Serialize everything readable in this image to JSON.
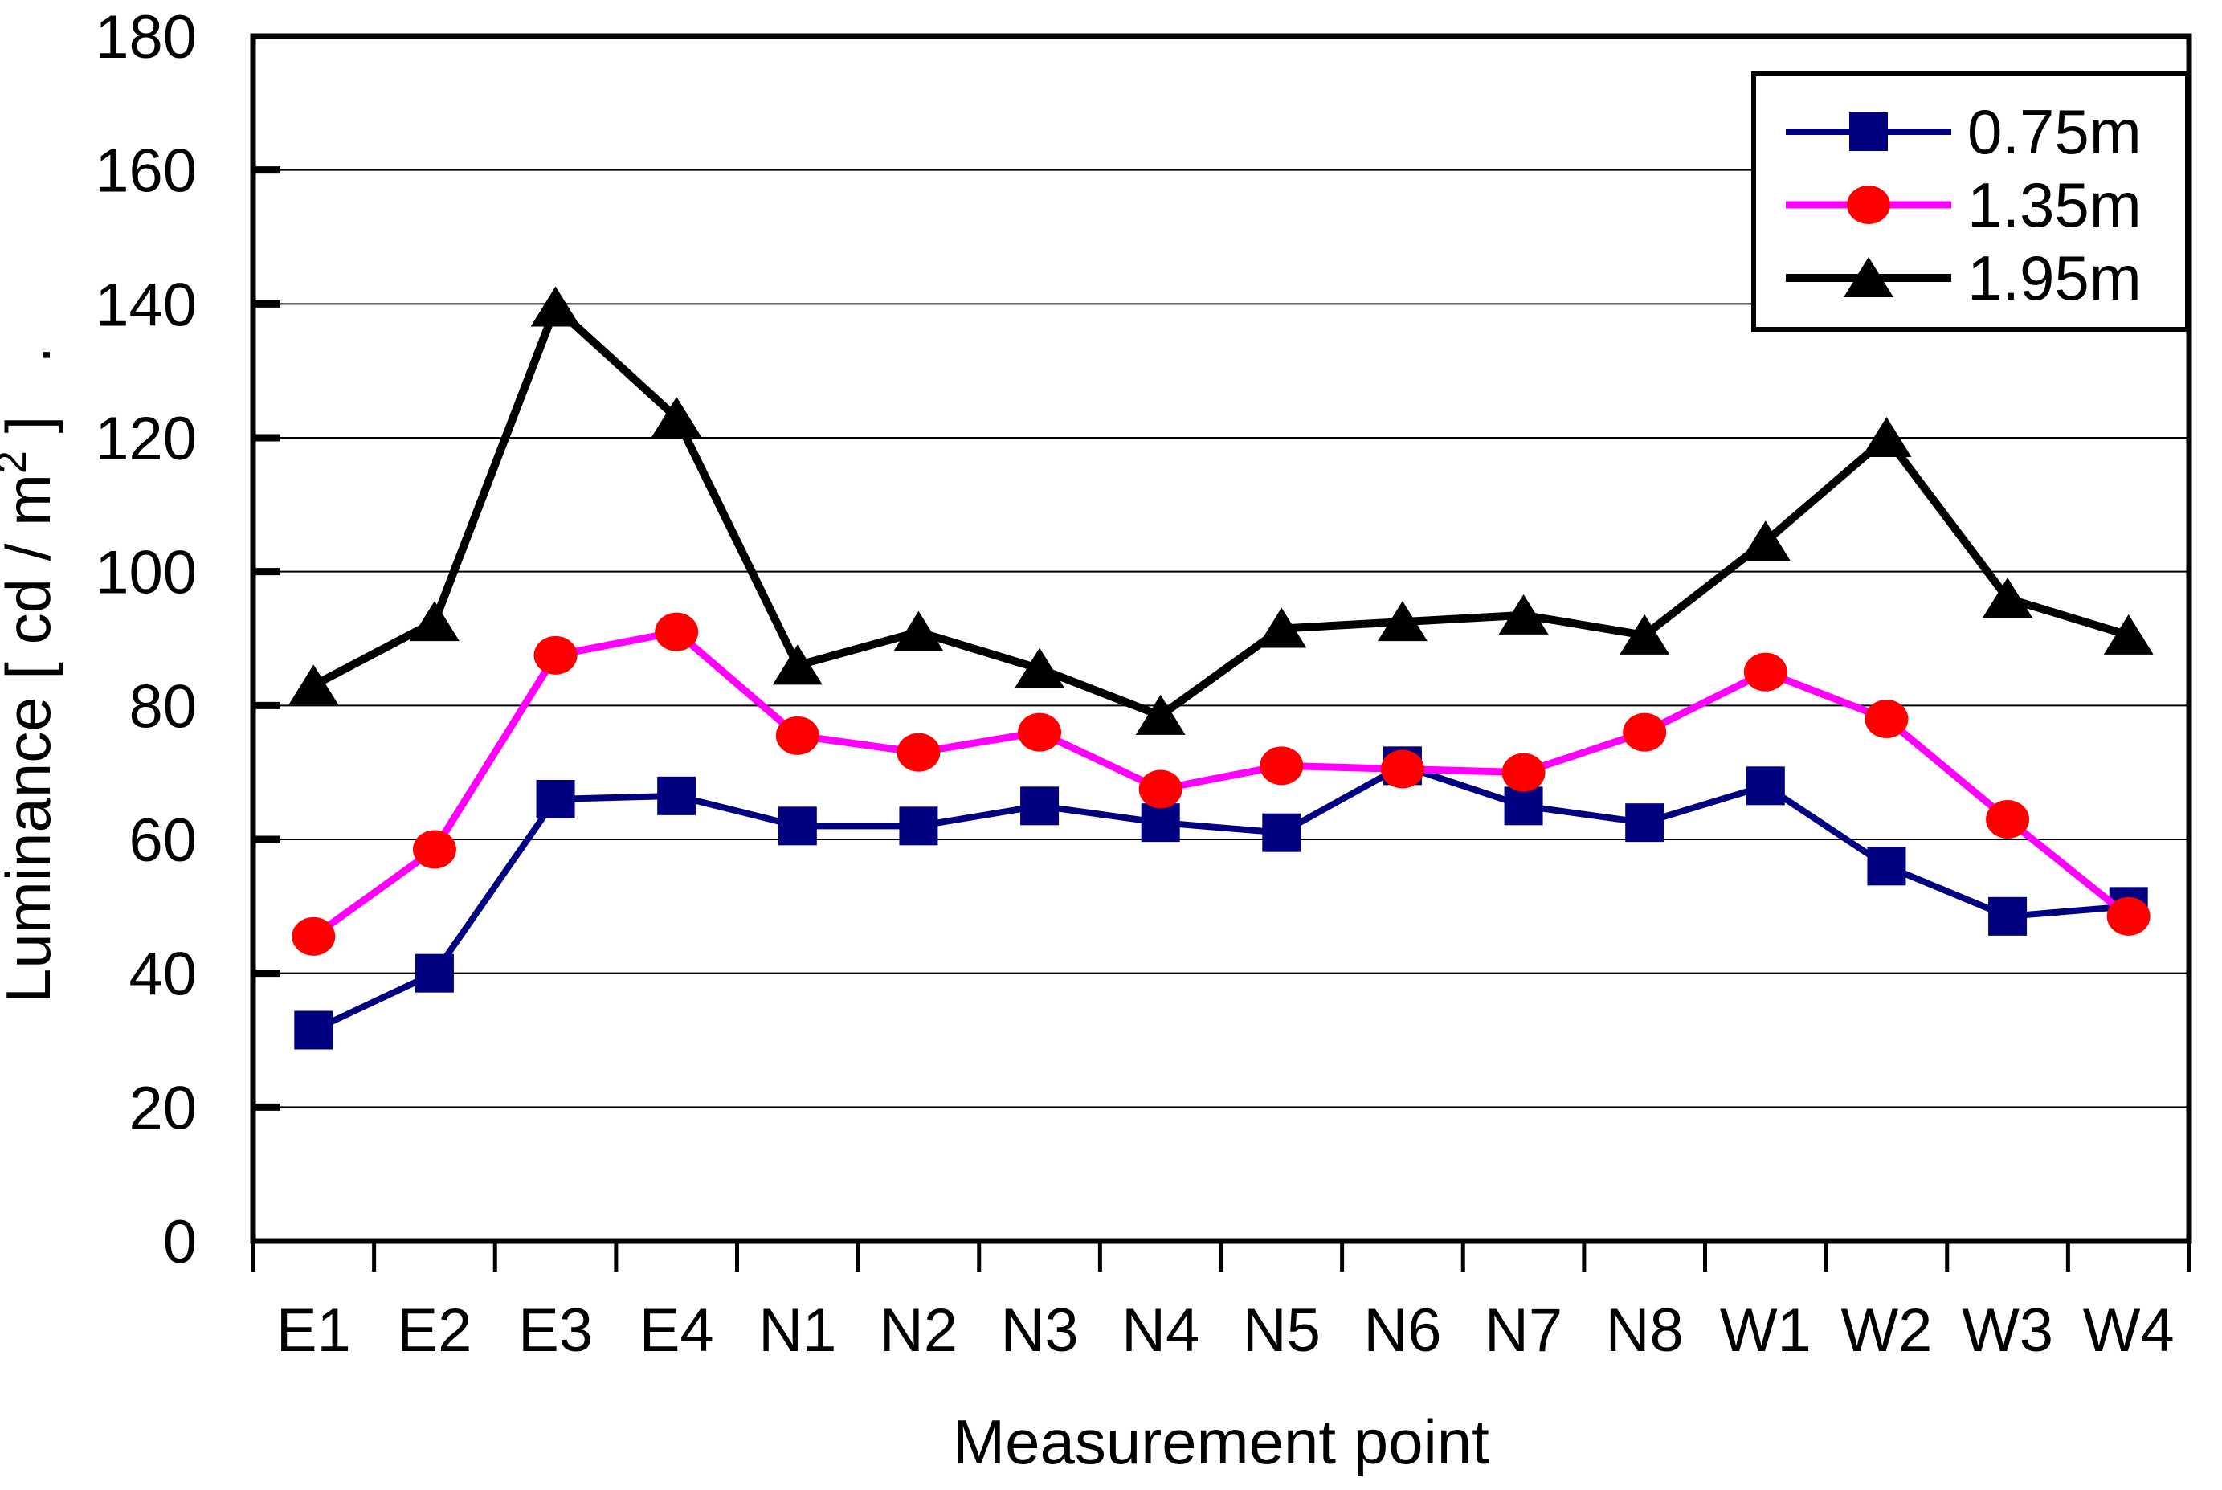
{
  "chart_data": {
    "type": "line",
    "title": "",
    "xlabel": "Measurement point",
    "ylabel": "Luminance [ cd / m2 ]",
    "ylabel_parts": {
      "prefix": "Luminance [ cd / m",
      "superscript": "2",
      "suffix": " ]",
      "trailing_dot": "."
    },
    "categories": [
      "E1",
      "E2",
      "E3",
      "E4",
      "N1",
      "N2",
      "N3",
      "N4",
      "N5",
      "N6",
      "N7",
      "N8",
      "W1",
      "W2",
      "W3",
      "W4"
    ],
    "series": [
      {
        "name": "0.75m",
        "marker": "square",
        "line_color": "#000080",
        "marker_color": "#000080",
        "values": [
          31.5,
          40,
          66,
          66.5,
          62,
          62,
          65,
          62.5,
          61,
          71,
          65,
          62.5,
          68,
          56,
          48.5,
          50
        ]
      },
      {
        "name": "1.35m",
        "marker": "circle",
        "line_color": "#FF00FF",
        "marker_color": "#FF0000",
        "values": [
          45.5,
          58.5,
          87.5,
          91,
          75.5,
          73,
          76,
          67.5,
          71,
          70.5,
          70,
          76,
          85,
          78,
          63,
          48.5
        ]
      },
      {
        "name": "1.95m",
        "marker": "triangle",
        "line_color": "#000000",
        "marker_color": "#000000",
        "values": [
          83,
          92.5,
          139.5,
          123,
          86,
          91,
          85.5,
          78.5,
          91.5,
          92.5,
          93.5,
          90.5,
          104.5,
          120,
          96,
          90.5
        ]
      }
    ],
    "ylim": [
      0,
      180
    ],
    "ytick_step": 20,
    "ytick_labels": [
      "0",
      "20",
      "40",
      "60",
      "80",
      "100",
      "120",
      "140",
      "160",
      "180"
    ],
    "grid": true,
    "legend_position": "top-right",
    "axis_color": "#000000",
    "grid_color": "#000000",
    "background_color": "#FFFFFF"
  }
}
